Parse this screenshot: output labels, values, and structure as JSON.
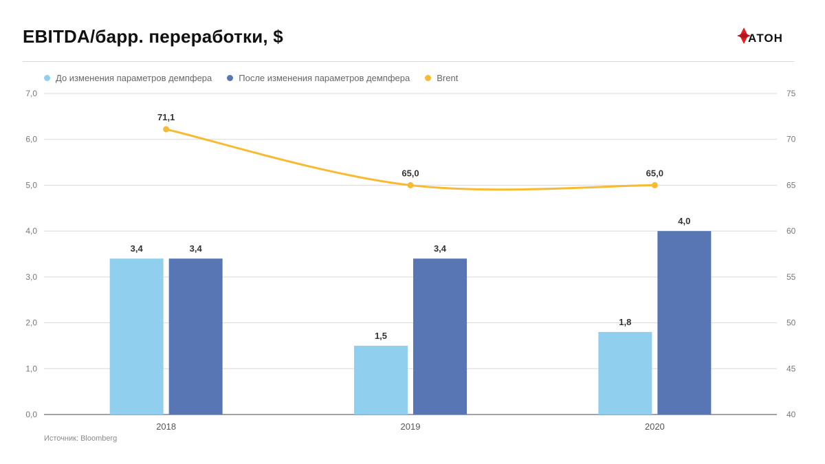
{
  "header": {
    "title": "EBITDA/барр. переработки, $",
    "brand": "АТОН"
  },
  "footer": {
    "source": "Источник: Bloomberg"
  },
  "colors": {
    "series_before": "#91cfee",
    "series_after": "#5876b3",
    "brent": "#f6bb32",
    "brand_red": "#e31e24"
  },
  "chart_data": {
    "type": "bar",
    "categories": [
      "2018",
      "2019",
      "2020"
    ],
    "series": [
      {
        "name": "До изменения параметров демпфера",
        "type": "bar",
        "axis": "left",
        "values": [
          3.4,
          1.5,
          1.8
        ],
        "labels": [
          "3,4",
          "1,5",
          "1,8"
        ]
      },
      {
        "name": "После изменения параметров демпфера",
        "type": "bar",
        "axis": "left",
        "values": [
          3.4,
          3.4,
          4.0
        ],
        "labels": [
          "3,4",
          "3,4",
          "4,0"
        ]
      },
      {
        "name": "Brent",
        "type": "line",
        "axis": "right",
        "values": [
          71.1,
          65.0,
          65.0
        ],
        "labels": [
          "71,1",
          "65,0",
          "65,0"
        ]
      }
    ],
    "y_left": {
      "min": 0,
      "max": 7,
      "ticks": [
        "0,0",
        "1,0",
        "2,0",
        "3,0",
        "4,0",
        "5,0",
        "6,0",
        "7,0"
      ]
    },
    "y_right": {
      "min": 40,
      "max": 75,
      "ticks": [
        "40",
        "45",
        "50",
        "55",
        "60",
        "65",
        "70",
        "75"
      ]
    },
    "grid": true,
    "legend_position": "top-left"
  }
}
